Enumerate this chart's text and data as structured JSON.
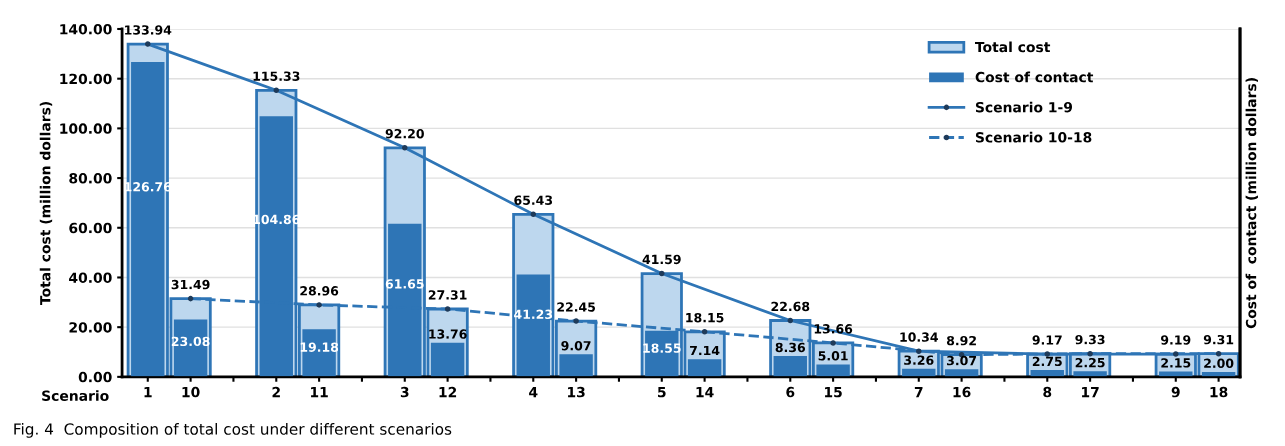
{
  "chart_data": {
    "type": "bar",
    "ylabel": "Total cost (million dollars)",
    "y2label": "Cost of  contact (million dollars)",
    "categories": [
      "1",
      "10",
      null,
      "2",
      "11",
      null,
      "3",
      "12",
      null,
      "4",
      "13",
      null,
      "5",
      "14",
      null,
      "6",
      "15",
      null,
      "7",
      "16",
      null,
      "8",
      "17",
      null,
      "9",
      "18"
    ],
    "series": [
      {
        "name": "Total cost",
        "color": "#bdd7ee",
        "values": [
          133.94,
          31.49,
          null,
          115.33,
          28.96,
          null,
          92.2,
          27.31,
          null,
          65.43,
          22.45,
          null,
          41.59,
          18.15,
          null,
          22.68,
          13.66,
          null,
          10.34,
          8.92,
          null,
          9.17,
          9.33,
          null,
          9.19,
          9.31
        ],
        "value_labels": [
          "133.94",
          "31.49",
          null,
          "115.33",
          "28.96",
          null,
          "92.20",
          "27.31",
          null,
          "65.43",
          "22.45",
          null,
          "41.59",
          "18.15",
          null,
          "22.68",
          "13.66",
          null,
          "10.34",
          "8.92",
          null,
          "9.17",
          "9.33",
          null,
          "9.19",
          "9.31"
        ]
      },
      {
        "name": "Cost of contact",
        "color": "#2e75b6",
        "values": [
          126.76,
          23.08,
          null,
          104.86,
          19.18,
          null,
          61.65,
          13.76,
          null,
          41.23,
          9.07,
          null,
          18.55,
          7.14,
          null,
          8.36,
          5.01,
          null,
          3.26,
          3.07,
          null,
          2.75,
          2.25,
          null,
          2.15,
          2.0
        ],
        "value_labels": [
          "126.76",
          "23.08",
          null,
          "104.86",
          "19.18",
          null,
          "61.65",
          "13.76",
          null,
          "41.23",
          "9.07",
          null,
          "18.55",
          "7.14",
          null,
          "8.36",
          "5.01",
          null,
          "3.26",
          "3.07",
          null,
          "2.75",
          "2.25",
          null,
          "2.15",
          "2.00"
        ]
      },
      {
        "name": "Scenario 1-9",
        "type": "line",
        "color": "#2e75b6",
        "line_style": "solid",
        "values": [
          133.94,
          null,
          null,
          115.33,
          null,
          null,
          92.2,
          null,
          null,
          65.43,
          null,
          null,
          41.59,
          null,
          null,
          22.68,
          null,
          null,
          10.34,
          null,
          null,
          9.17,
          null,
          null,
          9.19,
          null
        ]
      },
      {
        "name": "Scenario 10-18",
        "type": "line",
        "color": "#2e75b6",
        "line_style": "dashed",
        "values": [
          null,
          31.49,
          null,
          null,
          28.96,
          null,
          null,
          27.31,
          null,
          null,
          22.45,
          null,
          null,
          18.15,
          null,
          null,
          13.66,
          null,
          null,
          8.92,
          null,
          null,
          9.33,
          null,
          null,
          9.31
        ]
      }
    ],
    "ylim": [
      0,
      140
    ],
    "yticks": [
      {
        "value": 0,
        "label": "0.00"
      },
      {
        "value": 20,
        "label": "20.00"
      },
      {
        "value": 40,
        "label": "40.00"
      },
      {
        "value": 60,
        "label": "60.00"
      },
      {
        "value": 80,
        "label": "80.00"
      },
      {
        "value": 100,
        "label": "100.00"
      },
      {
        "value": 120,
        "label": "120.00"
      },
      {
        "value": 140,
        "label": "140.00"
      }
    ],
    "grid": "y",
    "legend": "top right",
    "marker": "circle",
    "annotations": [
      "Scenario",
      "Fig. 4  Composition of total cost under different scenarios"
    ]
  }
}
